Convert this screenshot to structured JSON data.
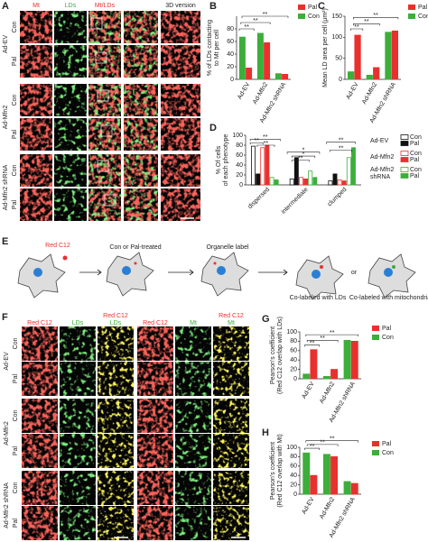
{
  "panel_labels": [
    "A",
    "B",
    "C",
    "D",
    "E",
    "F",
    "G",
    "H"
  ],
  "panel_a": {
    "columns": [
      "Mt",
      "LDs",
      "Mt/LDs",
      "3D version"
    ],
    "groups": [
      "Ad-EV",
      "Ad-Mfn2",
      "Ad-Mfn2 shRNA"
    ],
    "rows": [
      "Con",
      "Pal",
      "Con",
      "Pal",
      "Con",
      "Pal"
    ]
  },
  "panel_e": {
    "probe": "Red C12",
    "step1": "Con or Pal-treated",
    "step2": "Organelle label",
    "outcome1": "Co-labeled with LDs",
    "or": "or",
    "outcome2": "Co-labeled with mitochondria"
  },
  "panel_f": {
    "columns": [
      [
        "Red C12"
      ],
      [
        "LDs"
      ],
      [
        "Red C12",
        "LDs"
      ],
      [
        "Red C12"
      ],
      [
        "Mt"
      ],
      [
        "Red C12",
        "Mt"
      ]
    ],
    "groups": [
      "Ad-EV",
      "Ad-Mfn2",
      "Ad-Mfn2 shRNA"
    ],
    "rows": [
      "Con",
      "Pal",
      "Con",
      "Pal",
      "Con",
      "Pal"
    ]
  },
  "chart_data": [
    {
      "type": "bar",
      "ylabel": [
        "% of LDs contacting",
        "to Mt per cell"
      ],
      "categories": [
        "Ad-EV",
        "Ad-Mfn2",
        "Ad-Mfn2 shRNA"
      ],
      "series": [
        {
          "name": "Pal",
          "color": "#e8312f",
          "values": [
            18,
            58,
            8
          ]
        },
        {
          "name": "Con",
          "color": "#3cae3a",
          "values": [
            67,
            73,
            9
          ]
        }
      ],
      "ylim": [
        0,
        100
      ],
      "yticks": [
        0,
        20,
        40,
        60,
        80
      ],
      "annotations": [
        "**",
        "**",
        "**"
      ]
    },
    {
      "type": "bar",
      "ylabel": [
        "Mean LD area per cell (μm²)"
      ],
      "categories": [
        "Ad-EV",
        "Ad-Mfn2",
        "Ad-Mfn2 shRNA"
      ],
      "series": [
        {
          "name": "Pal",
          "color": "#e8312f",
          "values": [
            105,
            28,
            115
          ]
        },
        {
          "name": "Con",
          "color": "#3cae3a",
          "values": [
            18,
            10,
            112
          ]
        }
      ],
      "ylim": [
        0,
        150
      ],
      "yticks": [
        0,
        50,
        100,
        150
      ],
      "annotations": [
        "**",
        "**",
        "**"
      ]
    },
    {
      "type": "bar",
      "ylabel": [
        "% Of cells",
        "of each phenotype"
      ],
      "categories": [
        "dispersed",
        "intermediate",
        "clumped"
      ],
      "legend_groups": [
        [
          "Ad-EV"
        ],
        [
          "Ad-Mfn2"
        ],
        [
          "Ad-Mfn2",
          "shRNA"
        ]
      ],
      "series": [
        {
          "name": "Con",
          "color": "#111111",
          "hollow": true,
          "values": [
            78,
            12,
            8
          ]
        },
        {
          "name": "Pal",
          "color": "#111111",
          "values": [
            22,
            55,
            22
          ]
        },
        {
          "name": "Con",
          "color": "#e8312f",
          "hollow": true,
          "values": [
            75,
            15,
            10
          ]
        },
        {
          "name": "Pal",
          "color": "#e8312f",
          "values": [
            80,
            12,
            8
          ]
        },
        {
          "name": "Con",
          "color": "#3cae3a",
          "hollow": true,
          "values": [
            15,
            28,
            55
          ]
        },
        {
          "name": "Pal",
          "color": "#3cae3a",
          "values": [
            10,
            15,
            75
          ]
        }
      ],
      "ylim": [
        0,
        100
      ],
      "yticks": [
        0,
        20,
        40,
        60,
        80,
        100
      ],
      "annotations": [
        "**",
        "**",
        "**",
        "*",
        "*",
        "**",
        "**",
        "**"
      ]
    },
    {
      "type": "bar",
      "ylabel": [
        "Pearson's coefficient",
        "(Red C12 overlap with LDs)"
      ],
      "categories": [
        "Ad-EV",
        "Ad-Mfn2",
        "Ad-Mfn2 shRNA"
      ],
      "series": [
        {
          "name": "Pal",
          "color": "#e8312f",
          "values": [
            62,
            20,
            80
          ]
        },
        {
          "name": "Con",
          "color": "#3cae3a",
          "values": [
            10,
            5,
            82
          ]
        }
      ],
      "ylim": [
        0,
        100
      ],
      "yticks": [
        0,
        20,
        40,
        60,
        80,
        100
      ],
      "annotations": [
        "**",
        "**",
        "**"
      ]
    },
    {
      "type": "bar",
      "ylabel": [
        "Pearson's coefficient",
        "(Red C12 overlap with Mt)"
      ],
      "categories": [
        "Ad-EV",
        "Ad-Mfn2",
        "Ad-Mfn2 shRNA"
      ],
      "series": [
        {
          "name": "Pal",
          "color": "#e8312f",
          "values": [
            40,
            80,
            23
          ]
        },
        {
          "name": "Con",
          "color": "#3cae3a",
          "values": [
            88,
            85,
            27
          ]
        }
      ],
      "ylim": [
        0,
        100
      ],
      "yticks": [
        0,
        20,
        40,
        60,
        80,
        100
      ],
      "annotations": [
        "**",
        "**",
        "**"
      ]
    }
  ]
}
